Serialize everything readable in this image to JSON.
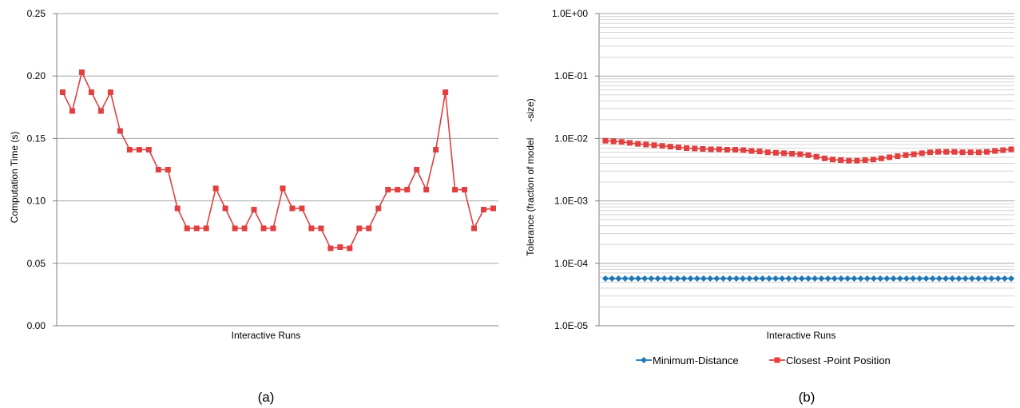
{
  "chart_data": [
    {
      "type": "line",
      "panel_label": "(a)",
      "xlabel": "Interactive Runs",
      "ylabel": "Computation Time (s)",
      "ylim": [
        0,
        0.25
      ],
      "yticks": [
        "0.00",
        "0.05",
        "0.10",
        "0.15",
        "0.20",
        "0.25"
      ],
      "ytick_values": [
        0,
        0.05,
        0.1,
        0.15,
        0.2,
        0.25
      ],
      "grid": true,
      "series": [
        {
          "color": "#e0403f",
          "marker": "square",
          "values": [
            0.187,
            0.172,
            0.203,
            0.187,
            0.172,
            0.187,
            0.156,
            0.141,
            0.141,
            0.141,
            0.125,
            0.125,
            0.094,
            0.078,
            0.078,
            0.078,
            0.11,
            0.094,
            0.078,
            0.078,
            0.093,
            0.078,
            0.078,
            0.11,
            0.094,
            0.094,
            0.078,
            0.078,
            0.062,
            0.063,
            0.062,
            0.078,
            0.078,
            0.094,
            0.109,
            0.109,
            0.109,
            0.125,
            0.109,
            0.141,
            0.187,
            0.109,
            0.109,
            0.078,
            0.093,
            0.094
          ]
        }
      ]
    },
    {
      "type": "line",
      "panel_label": "(b)",
      "xlabel": "Interactive Runs",
      "ylabel": "Tolerance (fraction of model      -size)",
      "yscale": "log",
      "ylim": [
        1e-05,
        1
      ],
      "yticks": [
        "1.0E+00",
        "1.0E-01",
        "1.0E-02",
        "1.0E-03",
        "1.0E-04",
        "1.0E-05"
      ],
      "ytick_values": [
        1,
        0.1,
        0.01,
        0.001,
        0.0001,
        1e-05
      ],
      "grid": true,
      "legend_position": "bottom",
      "series": [
        {
          "name": "Minimum-Distance",
          "color": "#1f77b4",
          "marker": "diamond",
          "values": [
            5.7e-05,
            5.7e-05,
            5.7e-05,
            5.7e-05,
            5.7e-05,
            5.7e-05,
            5.7e-05,
            5.7e-05,
            5.7e-05,
            5.7e-05,
            5.7e-05,
            5.7e-05,
            5.7e-05,
            5.7e-05,
            5.7e-05,
            5.7e-05,
            5.7e-05,
            5.7e-05,
            5.7e-05,
            5.7e-05,
            5.7e-05,
            5.7e-05,
            5.7e-05,
            5.7e-05,
            5.7e-05,
            5.7e-05,
            5.7e-05,
            5.7e-05,
            5.7e-05,
            5.7e-05,
            5.7e-05,
            5.7e-05,
            5.7e-05,
            5.7e-05,
            5.7e-05,
            5.7e-05,
            5.7e-05,
            5.7e-05,
            5.7e-05,
            5.7e-05,
            5.7e-05,
            5.7e-05,
            5.7e-05,
            5.7e-05,
            5.7e-05,
            5.7e-05,
            5.7e-05,
            5.7e-05,
            5.7e-05,
            5.7e-05,
            5.7e-05,
            5.7e-05,
            5.7e-05,
            5.7e-05,
            5.7e-05,
            5.7e-05,
            5.7e-05,
            5.7e-05,
            5.7e-05,
            5.7e-05,
            5.7e-05,
            5.7e-05,
            5.7e-05
          ]
        },
        {
          "name": "Closest -Point Position",
          "color": "#e0403f",
          "marker": "square",
          "values": [
            0.0092,
            0.009,
            0.0088,
            0.0085,
            0.0082,
            0.008,
            0.0078,
            0.0076,
            0.0074,
            0.0072,
            0.007,
            0.0069,
            0.0068,
            0.0067,
            0.0067,
            0.0066,
            0.0066,
            0.0065,
            0.0063,
            0.0062,
            0.006,
            0.0059,
            0.0058,
            0.0057,
            0.0056,
            0.0054,
            0.0051,
            0.0048,
            0.0046,
            0.0045,
            0.0044,
            0.0044,
            0.0045,
            0.0046,
            0.0048,
            0.005,
            0.0052,
            0.0054,
            0.0056,
            0.0058,
            0.006,
            0.0061,
            0.0061,
            0.0061,
            0.006,
            0.006,
            0.006,
            0.0061,
            0.0063,
            0.0065,
            0.0067
          ]
        }
      ]
    }
  ]
}
